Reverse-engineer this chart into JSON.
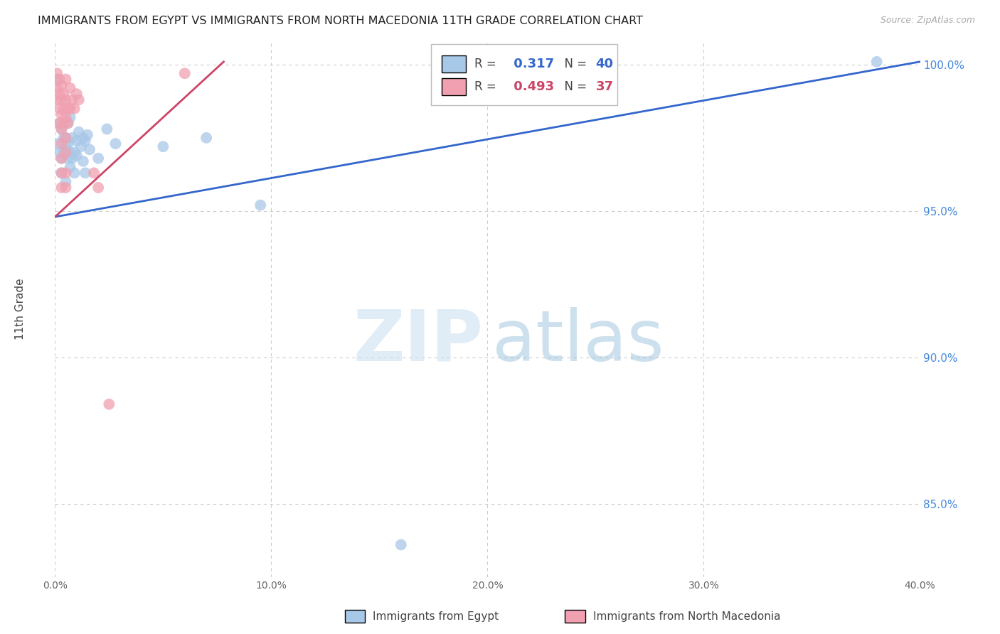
{
  "title": "IMMIGRANTS FROM EGYPT VS IMMIGRANTS FROM NORTH MACEDONIA 11TH GRADE CORRELATION CHART",
  "source": "Source: ZipAtlas.com",
  "ylabel": "11th Grade",
  "xlim": [
    0.0,
    0.4
  ],
  "ylim": [
    0.825,
    1.008
  ],
  "xtick_vals": [
    0.0,
    0.1,
    0.2,
    0.3,
    0.4
  ],
  "ytick_vals": [
    0.85,
    0.9,
    0.95,
    1.0
  ],
  "ytick_labels": [
    "85.0%",
    "90.0%",
    "95.0%",
    "100.0%"
  ],
  "blue_R": 0.317,
  "blue_N": 40,
  "pink_R": 0.493,
  "pink_N": 37,
  "blue_color": "#A8C8E8",
  "pink_color": "#F0A0B0",
  "blue_line_color": "#3366CC",
  "pink_line_color": "#CC4466",
  "blue_line_x0": 0.0,
  "blue_line_x1": 0.4,
  "blue_line_y0": 0.948,
  "blue_line_y1": 1.001,
  "pink_line_x0": 0.0,
  "pink_line_x1": 0.078,
  "pink_line_y0": 0.948,
  "pink_line_y1": 1.001,
  "blue_scatter": [
    [
      0.001,
      0.995
    ],
    [
      0.001,
      0.973
    ],
    [
      0.002,
      0.98
    ],
    [
      0.002,
      0.97
    ],
    [
      0.003,
      0.978
    ],
    [
      0.003,
      0.968
    ],
    [
      0.003,
      0.963
    ],
    [
      0.004,
      0.975
    ],
    [
      0.004,
      0.97
    ],
    [
      0.005,
      0.972
    ],
    [
      0.005,
      0.96
    ],
    [
      0.005,
      0.975
    ],
    [
      0.006,
      0.98
    ],
    [
      0.006,
      0.968
    ],
    [
      0.006,
      0.973
    ],
    [
      0.007,
      0.982
    ],
    [
      0.007,
      0.97
    ],
    [
      0.007,
      0.965
    ],
    [
      0.008,
      0.975
    ],
    [
      0.008,
      0.968
    ],
    [
      0.009,
      0.97
    ],
    [
      0.009,
      0.963
    ],
    [
      0.01,
      0.974
    ],
    [
      0.01,
      0.969
    ],
    [
      0.011,
      0.977
    ],
    [
      0.012,
      0.972
    ],
    [
      0.013,
      0.975
    ],
    [
      0.013,
      0.967
    ],
    [
      0.014,
      0.974
    ],
    [
      0.014,
      0.963
    ],
    [
      0.015,
      0.976
    ],
    [
      0.016,
      0.971
    ],
    [
      0.02,
      0.968
    ],
    [
      0.024,
      0.978
    ],
    [
      0.028,
      0.973
    ],
    [
      0.05,
      0.972
    ],
    [
      0.07,
      0.975
    ],
    [
      0.095,
      0.952
    ],
    [
      0.16,
      0.836
    ],
    [
      0.38,
      1.001
    ]
  ],
  "pink_scatter": [
    [
      0.001,
      0.997
    ],
    [
      0.001,
      0.992
    ],
    [
      0.001,
      0.988
    ],
    [
      0.002,
      0.995
    ],
    [
      0.002,
      0.99
    ],
    [
      0.002,
      0.985
    ],
    [
      0.002,
      0.98
    ],
    [
      0.003,
      0.993
    ],
    [
      0.003,
      0.988
    ],
    [
      0.003,
      0.983
    ],
    [
      0.003,
      0.978
    ],
    [
      0.003,
      0.973
    ],
    [
      0.003,
      0.968
    ],
    [
      0.003,
      0.963
    ],
    [
      0.003,
      0.958
    ],
    [
      0.004,
      0.99
    ],
    [
      0.004,
      0.985
    ],
    [
      0.004,
      0.98
    ],
    [
      0.005,
      0.995
    ],
    [
      0.005,
      0.988
    ],
    [
      0.005,
      0.982
    ],
    [
      0.005,
      0.975
    ],
    [
      0.005,
      0.97
    ],
    [
      0.005,
      0.963
    ],
    [
      0.005,
      0.958
    ],
    [
      0.006,
      0.985
    ],
    [
      0.006,
      0.98
    ],
    [
      0.007,
      0.992
    ],
    [
      0.007,
      0.985
    ],
    [
      0.008,
      0.988
    ],
    [
      0.009,
      0.985
    ],
    [
      0.01,
      0.99
    ],
    [
      0.011,
      0.988
    ],
    [
      0.018,
      0.963
    ],
    [
      0.02,
      0.958
    ],
    [
      0.025,
      0.884
    ],
    [
      0.06,
      0.997
    ]
  ],
  "watermark_zip": "ZIP",
  "watermark_atlas": "atlas",
  "background_color": "#FFFFFF",
  "grid_color": "#CCCCCC",
  "legend_blue_label": "R =  0.317   N = 40",
  "legend_pink_label": "R =  0.493   N = 37",
  "bottom_label_blue": "Immigrants from Egypt",
  "bottom_label_pink": "Immigrants from North Macedonia"
}
